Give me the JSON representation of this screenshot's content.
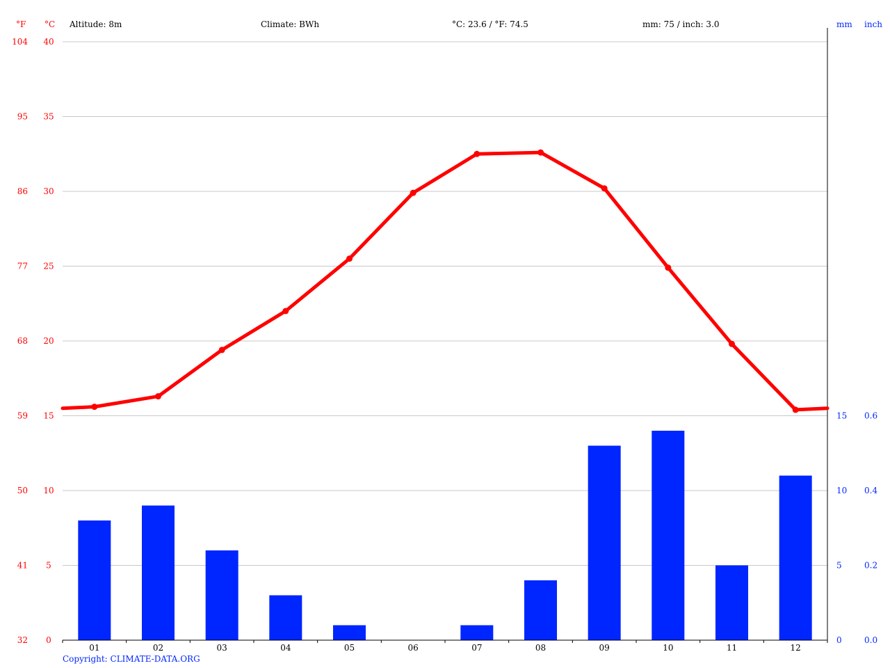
{
  "header": {
    "unit_f": "°F",
    "unit_c": "°C",
    "altitude": "Altitude: 8m",
    "climate": "Climate: BWh",
    "avg_temp": "°C: 23.6 / °F: 74.5",
    "precip": "mm: 75 / inch: 3.0",
    "unit_mm": "mm",
    "unit_inch": "inch"
  },
  "footer": {
    "copyright": "Copyright: CLIMATE-DATA.ORG"
  },
  "colors": {
    "temperature": "#ff0000",
    "precipitation": "#0026ff",
    "grid": "#c8c8c8",
    "axis": "#000000"
  },
  "chart_data": {
    "type": "bar",
    "categories": [
      "01",
      "02",
      "03",
      "04",
      "05",
      "06",
      "07",
      "08",
      "09",
      "10",
      "11",
      "12"
    ],
    "series": [
      {
        "type": "line",
        "axis": "left",
        "values": [
          15.6,
          16.3,
          19.4,
          22.0,
          25.5,
          29.9,
          32.5,
          32.6,
          30.2,
          24.9,
          19.8,
          15.4
        ]
      },
      {
        "type": "bar",
        "axis": "right",
        "values": [
          8,
          9,
          6,
          3,
          1,
          0,
          1,
          4,
          13,
          14,
          5,
          11
        ]
      }
    ],
    "left_axis": {
      "celsius_ticks": [
        "0",
        "5",
        "10",
        "15",
        "20",
        "25",
        "30",
        "35",
        "40"
      ],
      "fahrenheit_ticks": [
        "32",
        "41",
        "50",
        "59",
        "68",
        "77",
        "86",
        "95",
        "104"
      ],
      "ylim": [
        0,
        40
      ]
    },
    "right_axis": {
      "mm_ticks": [
        "0",
        "5",
        "10",
        "15"
      ],
      "inch_ticks": [
        "0.0",
        "0.2",
        "0.4",
        "0.6"
      ],
      "ylim": [
        0,
        40
      ]
    },
    "grid": true
  }
}
